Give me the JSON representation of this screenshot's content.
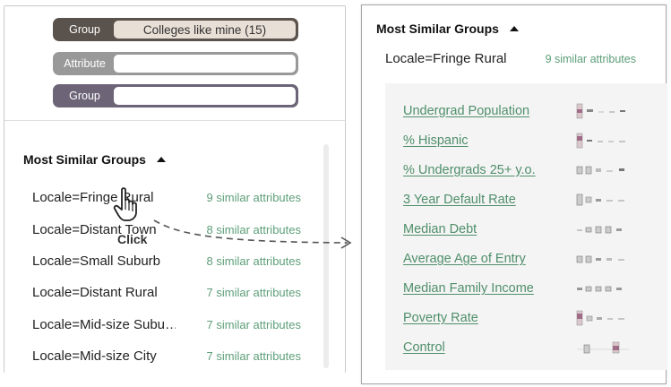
{
  "filters": [
    {
      "tag": "Group",
      "value": "Colleges like mine (15)"
    },
    {
      "tag": "Attribute",
      "value": ""
    },
    {
      "tag": "Group",
      "value": ""
    }
  ],
  "left": {
    "title": "Most Similar Groups",
    "groups": [
      {
        "name": "Locale=Fringe Rural",
        "count": "9 similar attributes"
      },
      {
        "name": "Locale=Distant Town",
        "count": "8 similar attributes"
      },
      {
        "name": "Locale=Small Suburb",
        "count": "8 similar attributes"
      },
      {
        "name": "Locale=Distant Rural",
        "count": "7 similar attributes"
      },
      {
        "name": "Locale=Mid-size Subu…",
        "count": "7 similar attributes"
      },
      {
        "name": "Locale=Mid-size City",
        "count": "7 similar attributes"
      }
    ],
    "click_label": "Click"
  },
  "right": {
    "title": "Most Similar Groups",
    "locale": "Locale=Fringe Rural",
    "count": "9 similar attributes",
    "attributes": [
      "Undergrad Population",
      "% Hispanic",
      "% Undergrads 25+ y.o.",
      "3 Year Default Rate",
      "Median Debt",
      "Average Age of Entry",
      "Median Family Income",
      "Poverty Rate",
      "Control"
    ]
  },
  "colors": {
    "accent_green": "#5d9e78",
    "group_tag_dark": "#5a524c",
    "attribute_tag": "#999999",
    "group_tag_purple": "#6d6478"
  }
}
